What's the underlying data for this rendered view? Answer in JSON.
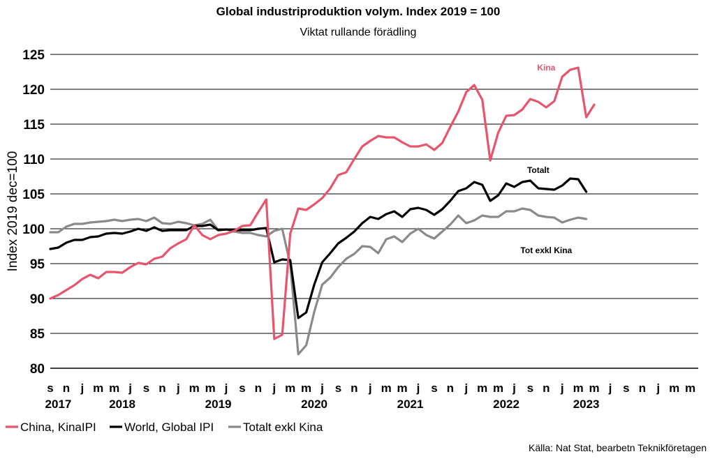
{
  "chart_data": {
    "type": "line",
    "title": "Global industriproduktion volym. Index 2019 = 100",
    "subtitle": "Viktat rullande förädling",
    "ylabel": "Index 2019 dec=100",
    "ylim": [
      80,
      125
    ],
    "yticks": [
      "125",
      "120",
      "115",
      "110",
      "105",
      "100",
      "95",
      "90",
      "85",
      "80"
    ],
    "grid": true,
    "x_month_labels": [
      "s",
      "n",
      "j",
      "m",
      "m",
      "j",
      "s",
      "n",
      "j",
      "m",
      "m",
      "j",
      "s",
      "n",
      "j",
      "m",
      "m",
      "j",
      "s",
      "n",
      "j",
      "m",
      "m",
      "j",
      "s",
      "n",
      "j",
      "m",
      "m",
      "j",
      "s",
      "n",
      "j",
      "m",
      "m",
      "j",
      "s",
      "n",
      "j",
      "m",
      "m"
    ],
    "x_year_labels": [
      {
        "label": "2017",
        "month_index": 1
      },
      {
        "label": "2018",
        "month_index": 9
      },
      {
        "label": "2019",
        "month_index": 21
      },
      {
        "label": "2020",
        "month_index": 33
      },
      {
        "label": "2021",
        "month_index": 45
      },
      {
        "label": "2022",
        "month_index": 57
      },
      {
        "label": "2023",
        "month_index": 67
      }
    ],
    "series": [
      {
        "name": "China, KinaIPI",
        "color": "#e8546b",
        "values": [
          90.0,
          90.5,
          91.2,
          91.9,
          92.8,
          93.4,
          92.9,
          93.8,
          93.8,
          93.7,
          94.5,
          95.1,
          94.9,
          95.7,
          96.0,
          97.2,
          97.9,
          98.5,
          100.5,
          99.1,
          98.5,
          99.1,
          99.3,
          99.7,
          100.4,
          100.5,
          102.4,
          104.2,
          84.2,
          84.8,
          99.3,
          102.9,
          102.7,
          103.5,
          104.4,
          105.8,
          107.7,
          108.1,
          110.0,
          111.8,
          112.6,
          113.3,
          113.1,
          113.1,
          112.4,
          111.8,
          111.8,
          112.1,
          111.3,
          112.3,
          114.6,
          116.8,
          119.6,
          120.6,
          118.5,
          109.8,
          113.8,
          116.2,
          116.3,
          117.1,
          118.6,
          118.2,
          117.4,
          118.3,
          121.8,
          122.8,
          123.1,
          116.0,
          117.8
        ]
      },
      {
        "name": "World, Global IPI",
        "color": "#000000",
        "values": [
          97.1,
          97.3,
          98.0,
          98.4,
          98.4,
          98.8,
          98.9,
          99.3,
          99.4,
          99.3,
          99.6,
          100.0,
          99.7,
          100.2,
          99.7,
          99.8,
          99.8,
          99.8,
          100.4,
          100.4,
          100.6,
          99.8,
          99.9,
          99.8,
          99.8,
          99.8,
          100.0,
          100.1,
          95.2,
          95.6,
          95.5,
          87.2,
          88.0,
          92.0,
          95.2,
          96.5,
          97.9,
          98.7,
          99.6,
          100.8,
          101.7,
          101.4,
          102.1,
          102.5,
          101.7,
          102.8,
          103.0,
          102.7,
          102.0,
          102.8,
          104.0,
          105.4,
          105.8,
          106.7,
          106.3,
          104.0,
          104.8,
          106.5,
          106.0,
          106.7,
          106.9,
          105.8,
          105.7,
          105.6,
          106.2,
          107.2,
          107.1,
          105.3
        ]
      },
      {
        "name": "Totalt exkl Kina",
        "color": "#8a8a8a",
        "values": [
          99.5,
          99.5,
          100.3,
          100.7,
          100.7,
          100.9,
          101.0,
          101.1,
          101.3,
          101.1,
          101.3,
          101.4,
          101.1,
          101.6,
          100.8,
          100.7,
          101.0,
          100.8,
          100.5,
          100.7,
          101.3,
          99.8,
          99.9,
          99.6,
          99.4,
          99.4,
          99.1,
          98.9,
          99.7,
          100.0,
          94.9,
          82.0,
          83.3,
          88.1,
          92.0,
          93.0,
          94.5,
          95.7,
          96.4,
          97.5,
          97.4,
          96.5,
          98.5,
          98.9,
          98.1,
          99.3,
          100.0,
          99.1,
          98.6,
          99.6,
          100.6,
          101.9,
          100.8,
          101.2,
          101.9,
          101.7,
          101.7,
          102.5,
          102.5,
          102.9,
          102.7,
          101.9,
          101.7,
          101.6,
          100.9,
          101.3,
          101.6,
          101.4
        ]
      }
    ],
    "annotations": [
      {
        "text": "Kina",
        "color": "#e8546b",
        "month_index": 62,
        "y": 122.7
      },
      {
        "text": "Totalt",
        "color": "#000000",
        "month_index": 61,
        "y": 108.0
      },
      {
        "text": "Tot exkl Kina",
        "color": "#000000",
        "month_index": 62,
        "y": 96.5
      }
    ],
    "legend_position": "bottom-left"
  },
  "source": "Källa: Nat Stat, bearbetn Teknikföretagen"
}
